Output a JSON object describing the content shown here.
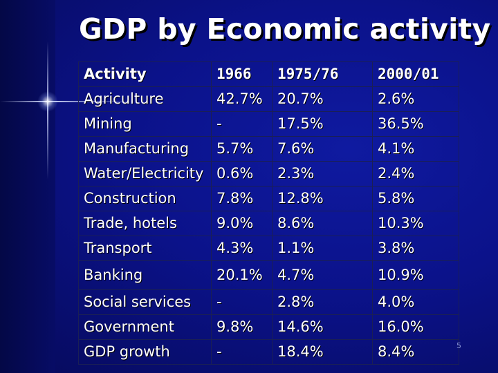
{
  "title": "GDP by Economic activity",
  "table": {
    "headers": [
      "Activity",
      "1966",
      "1975/76",
      "2000/01"
    ],
    "rows": [
      {
        "activity": "Agriculture",
        "y1966": "42.7%",
        "y1975": "20.7%",
        "y2000": "2.6%"
      },
      {
        "activity": "Mining",
        "y1966": "-",
        "y1975": "17.5%",
        "y2000": "36.5%"
      },
      {
        "activity": "Manufacturing",
        "y1966": "5.7%",
        "y1975": "7.6%",
        "y2000": "4.1%"
      },
      {
        "activity": "Water/Electricity",
        "y1966": "0.6%",
        "y1975": "2.3%",
        "y2000": "2.4%"
      },
      {
        "activity": "Construction",
        "y1966": "7.8%",
        "y1975": "12.8%",
        "y2000": "5.8%"
      },
      {
        "activity": "Trade, hotels",
        "y1966": "9.0%",
        "y1975": "8.6%",
        "y2000": "10.3%"
      },
      {
        "activity": "Transport",
        "y1966": "4.3%",
        "y1975": "1.1%",
        "y2000": "3.8%"
      },
      {
        "activity": "Banking",
        "y1966": "20.1%",
        "y1975": "4.7%",
        "y2000": "10.9%"
      },
      {
        "activity": "Social services",
        "y1966": "-",
        "y1975": "2.8%",
        "y2000": "4.0%"
      },
      {
        "activity": "Government",
        "y1966": "9.8%",
        "y1975": "14.6%",
        "y2000": "16.0%"
      },
      {
        "activity": "GDP growth",
        "y1966": "-",
        "y1975": "18.4%",
        "y2000": "8.4%"
      }
    ]
  },
  "page_number": "5"
}
